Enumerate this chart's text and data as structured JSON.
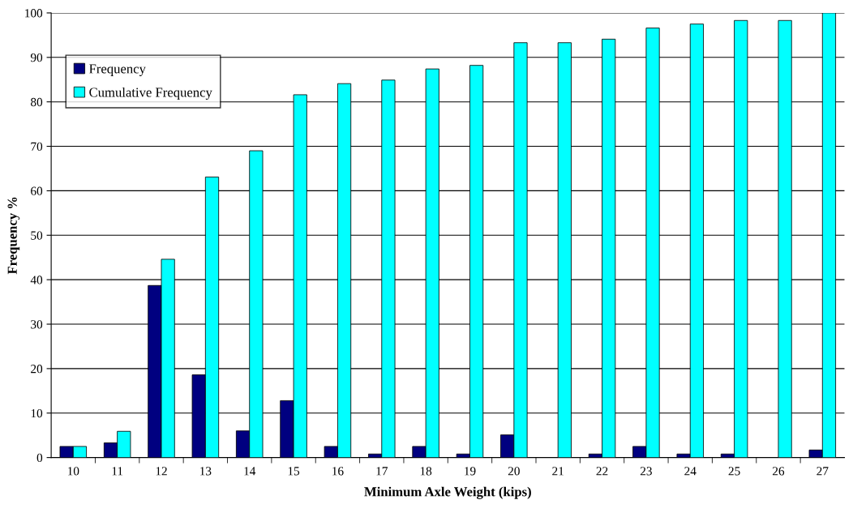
{
  "chart_data": {
    "type": "bar",
    "xlabel": "Minimum Axle Weight (kips)",
    "ylabel": "Frequency %",
    "categories": [
      "10",
      "11",
      "12",
      "13",
      "14",
      "15",
      "16",
      "17",
      "18",
      "19",
      "20",
      "21",
      "22",
      "23",
      "24",
      "25",
      "26",
      "27"
    ],
    "series": [
      {
        "name": "Frequency",
        "color": "#000080",
        "values": [
          2.5,
          3.3,
          38.7,
          18.6,
          6.0,
          12.8,
          2.5,
          0.8,
          2.5,
          0.8,
          5.1,
          0,
          0.8,
          2.5,
          0.8,
          0.8,
          0,
          1.7
        ]
      },
      {
        "name": "Cumulative Frequency",
        "color": "#00ffff",
        "values": [
          2.5,
          5.9,
          44.6,
          63.1,
          69.0,
          81.6,
          84.1,
          84.9,
          87.4,
          88.2,
          93.3,
          93.3,
          94.1,
          96.6,
          97.5,
          98.3,
          98.3,
          100
        ]
      }
    ],
    "ylim": [
      0,
      100
    ],
    "yticks": [
      0,
      10,
      20,
      30,
      40,
      50,
      60,
      70,
      80,
      90,
      100
    ],
    "grid": "y",
    "legend": "top left"
  }
}
